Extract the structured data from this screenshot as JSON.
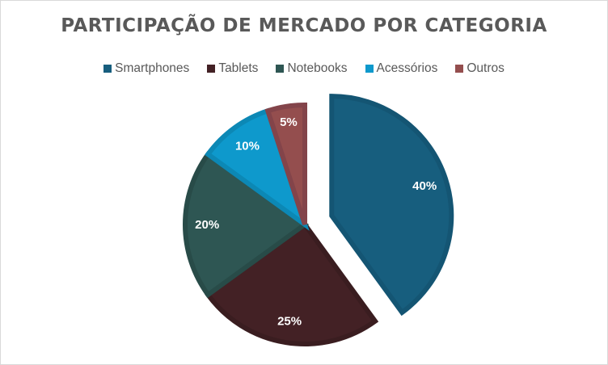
{
  "chart_data": {
    "type": "pie",
    "title": "PARTICIPAÇÃO DE MERCADO POR CATEGORIA",
    "legend_position": "top",
    "categories": [
      "Smartphones",
      "Tablets",
      "Notebooks",
      "Acessórios",
      "Outros"
    ],
    "values": [
      40,
      25,
      20,
      10,
      5
    ],
    "data_labels": [
      "40%",
      "25%",
      "20%",
      "10%",
      "5%"
    ],
    "colors": [
      "#175E7E",
      "#432125",
      "#2E5653",
      "#0E99CC",
      "#944E4E"
    ],
    "border_colors": [
      "#145573",
      "#3A1D20",
      "#284B48",
      "#0C88B5",
      "#83444A"
    ],
    "exploded": [
      "Smartphones"
    ]
  }
}
